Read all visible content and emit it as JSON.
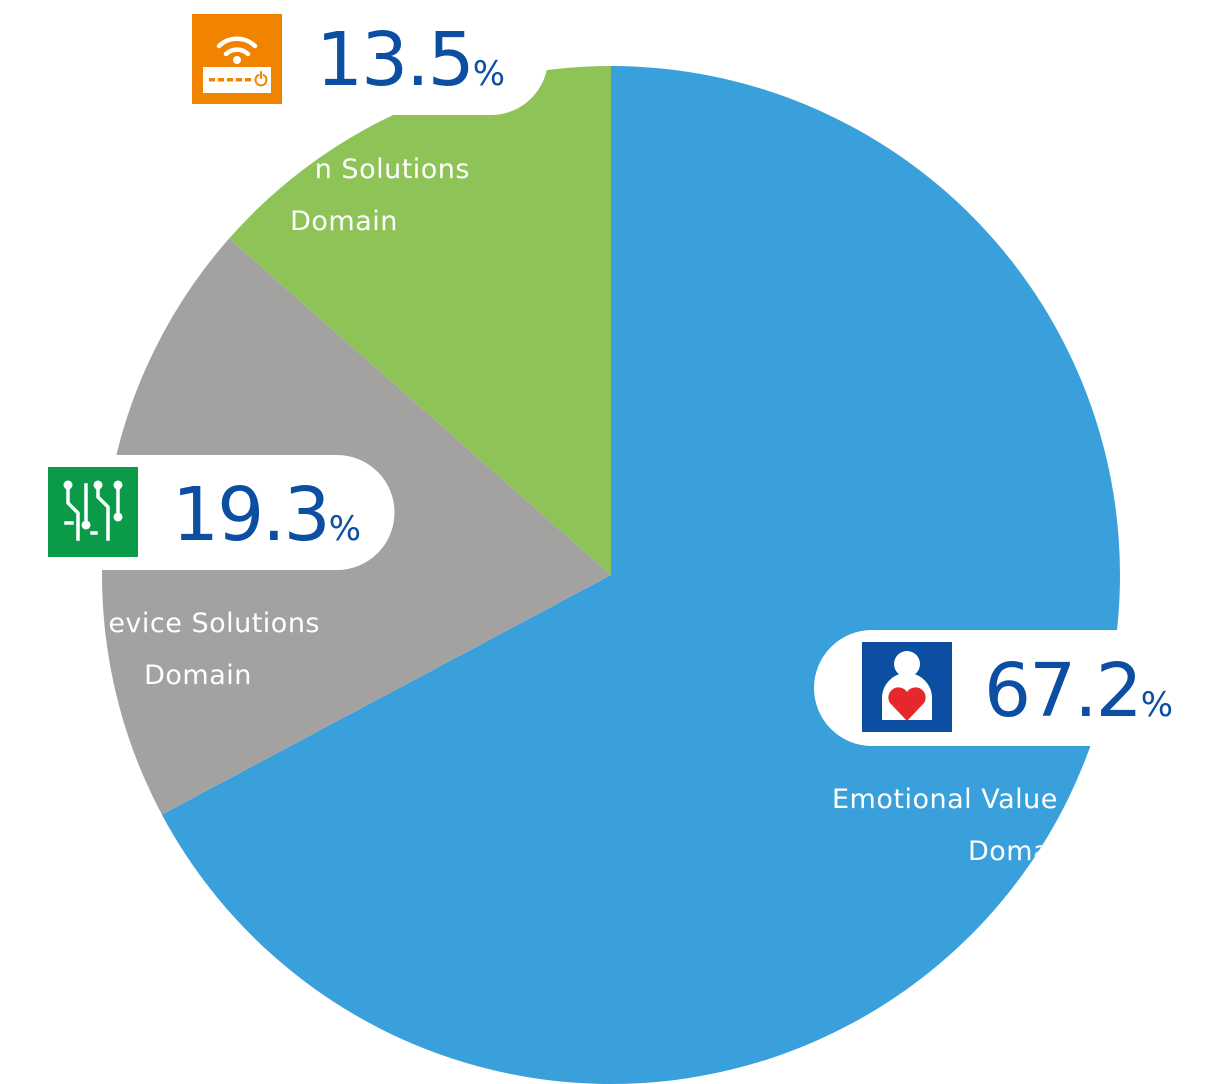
{
  "chart_data": {
    "type": "pie",
    "start_angle_deg": 0,
    "direction": "clockwise",
    "categories": [
      "Emotional Value Domain",
      "Device Solutions Domain",
      "Solutions Domain"
    ],
    "label_lines": [
      [
        "Emotional Value",
        "Domain"
      ],
      [
        "evice Solutions",
        "Domain"
      ],
      [
        "n Solutions",
        "Domain"
      ]
    ],
    "values": [
      67.2,
      19.3,
      13.5
    ],
    "value_labels": [
      "67.2",
      "19.3",
      "13.5"
    ],
    "unit": "%",
    "colors": [
      "#3AA0DC",
      "#A3A2A1",
      "#8EC457"
    ],
    "icons": [
      "person-heart-icon",
      "circuit-board-icon",
      "wifi-router-icon"
    ],
    "icon_colors": [
      "#0B4EA2",
      "#0A9A48",
      "#F08300"
    ],
    "value_text_color": "#0B4EA2"
  }
}
